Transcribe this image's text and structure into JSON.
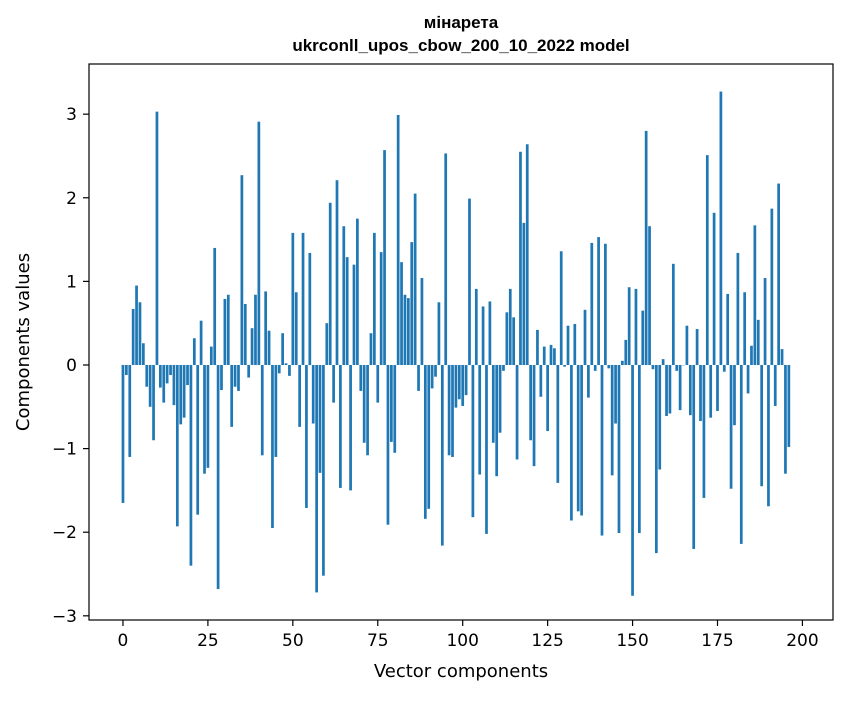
{
  "chart_data": {
    "type": "bar",
    "title": "мінарета",
    "subtitle": "ukrconll_upos_cbow_200_10_2022 model",
    "xlabel": "Vector components",
    "ylabel": "Components values",
    "xlim": [
      -10,
      209
    ],
    "ylim": [
      -3.05,
      3.6
    ],
    "xticks": [
      0,
      25,
      50,
      75,
      100,
      125,
      150,
      175,
      200
    ],
    "xtick_labels": [
      "0",
      "25",
      "50",
      "75",
      "100",
      "125",
      "150",
      "175",
      "200"
    ],
    "yticks": [
      -3,
      -2,
      -1,
      0,
      1,
      2,
      3
    ],
    "ytick_labels": [
      "−3",
      "−2",
      "−1",
      "0",
      "1",
      "2",
      "3"
    ],
    "bar_color": "#1f77b4",
    "grid": false,
    "legend": "none",
    "values": [
      -1.65,
      -0.12,
      -1.1,
      0.67,
      0.95,
      0.75,
      0.26,
      -0.26,
      -0.5,
      -0.9,
      3.03,
      -0.27,
      -0.45,
      -0.22,
      -0.12,
      -0.48,
      -1.93,
      -0.71,
      -0.63,
      -0.24,
      -2.4,
      0.32,
      -1.79,
      0.53,
      -1.3,
      -1.23,
      0.22,
      1.4,
      -2.68,
      -0.3,
      0.79,
      0.84,
      -0.74,
      -0.26,
      -0.31,
      2.27,
      0.73,
      -0.15,
      0.44,
      0.84,
      2.91,
      -1.08,
      0.88,
      0.41,
      -1.95,
      -1.1,
      -0.1,
      0.38,
      0.02,
      -0.13,
      1.58,
      0.87,
      -0.74,
      1.58,
      -1.71,
      1.34,
      -0.7,
      -2.72,
      -1.29,
      -2.52,
      0.5,
      1.94,
      -0.45,
      2.21,
      -1.47,
      1.66,
      1.29,
      -1.5,
      1.2,
      1.75,
      -0.31,
      -0.93,
      -1.08,
      0.38,
      1.58,
      -0.45,
      1.35,
      2.57,
      -1.91,
      -0.92,
      -1.05,
      2.99,
      1.23,
      0.84,
      0.8,
      1.47,
      2.05,
      -0.31,
      1.04,
      -1.84,
      -1.72,
      -0.28,
      -0.14,
      0.75,
      -2.16,
      2.53,
      -1.08,
      -1.1,
      -0.51,
      -0.41,
      -0.49,
      -0.36,
      1.99,
      -1.82,
      0.91,
      -1.31,
      0.7,
      -2.02,
      0.76,
      -0.93,
      -1.33,
      -0.81,
      -0.07,
      0.63,
      0.91,
      0.57,
      -1.13,
      2.55,
      1.7,
      2.64,
      -0.9,
      -1.21,
      0.42,
      -0.38,
      0.22,
      -0.79,
      0.24,
      0.2,
      -1.41,
      1.36,
      -0.02,
      0.47,
      -1.86,
      0.49,
      -1.75,
      -1.8,
      0.66,
      -0.39,
      1.46,
      -0.07,
      1.53,
      -2.04,
      1.45,
      -0.04,
      -1.32,
      -0.7,
      -2.01,
      0.05,
      0.3,
      0.93,
      -2.76,
      0.91,
      -2.01,
      0.65,
      2.8,
      1.66,
      -0.05,
      -2.25,
      -1.25,
      0.07,
      -0.61,
      -0.58,
      1.21,
      -0.07,
      -0.54,
      0.0,
      0.47,
      -0.6,
      -2.2,
      0.43,
      -0.67,
      -1.59,
      2.51,
      -0.63,
      1.82,
      -0.55,
      3.27,
      -0.08,
      0.85,
      -1.48,
      -0.72,
      1.34,
      -2.14,
      0.87,
      -0.34,
      0.23,
      1.67,
      0.54,
      -1.45,
      1.04,
      -1.69,
      1.87,
      -0.49,
      2.17,
      0.19,
      -1.3,
      -0.98
    ]
  }
}
